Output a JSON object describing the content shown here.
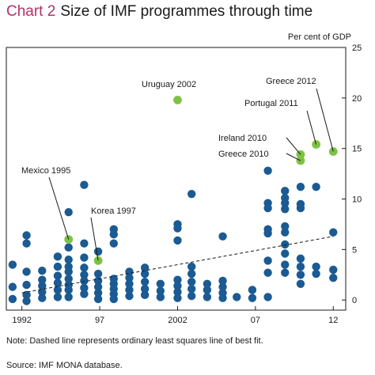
{
  "header": {
    "chart_number": "Chart 2",
    "title": "Size of IMF programmes through time"
  },
  "unit_label": "Per cent of GDP",
  "footnote": "Note:  Dashed line represents ordinary least squares line of best fit.",
  "source": "Source:  IMF MONA database.",
  "colors": {
    "point": "#1b5a92",
    "highlight": "#7ec244",
    "frame": "#1a1a1a",
    "fit_line": "#1a1a1a",
    "title_accent": "#b5306a"
  },
  "chart_data": {
    "type": "scatter",
    "xlim": [
      1991,
      2012.8
    ],
    "ylim": [
      -1,
      25
    ],
    "x_ticks": [
      {
        "value": 1992,
        "label": "1992"
      },
      {
        "value": 1997,
        "label": "97"
      },
      {
        "value": 2002,
        "label": "2002"
      },
      {
        "value": 2007,
        "label": "07"
      },
      {
        "value": 2012,
        "label": "12"
      }
    ],
    "y_ticks": [
      {
        "value": 0,
        "label": "0"
      },
      {
        "value": 5,
        "label": "5"
      },
      {
        "value": 10,
        "label": "10"
      },
      {
        "value": 15,
        "label": "15"
      },
      {
        "value": 20,
        "label": "20"
      },
      {
        "value": 25,
        "label": "25"
      }
    ],
    "grid": false,
    "fit_line": {
      "style": "dashed",
      "x": [
        1992,
        2012
      ],
      "y": [
        0.7,
        6.3
      ]
    },
    "highlighted": [
      {
        "label": "Mexico 1995",
        "x": 1995,
        "y": 6.0
      },
      {
        "label": "Korea 1997",
        "x": 1996.9,
        "y": 3.9
      },
      {
        "label": "Uruguay 2002",
        "x": 2002,
        "y": 19.8
      },
      {
        "label": "Ireland 2010",
        "x": 2009.9,
        "y": 14.4
      },
      {
        "label": "Greece 2010",
        "x": 2009.9,
        "y": 13.8
      },
      {
        "label": "Portugal 2011",
        "x": 2010.9,
        "y": 15.4
      },
      {
        "label": "Greece 2012",
        "x": 2012,
        "y": 14.7
      }
    ],
    "points": [
      {
        "x": 1991.4,
        "y": 0.1
      },
      {
        "x": 1991.4,
        "y": 1.3
      },
      {
        "x": 1991.4,
        "y": 3.5
      },
      {
        "x": 1992.3,
        "y": 6.4
      },
      {
        "x": 1992.3,
        "y": 5.6
      },
      {
        "x": 1992.3,
        "y": 2.8
      },
      {
        "x": 1992.3,
        "y": 1.5
      },
      {
        "x": 1992.3,
        "y": 0.5
      },
      {
        "x": 1992.3,
        "y": -0.1
      },
      {
        "x": 1993.3,
        "y": 0.2
      },
      {
        "x": 1993.3,
        "y": 0.8
      },
      {
        "x": 1993.3,
        "y": 1.4
      },
      {
        "x": 1993.3,
        "y": 2.0
      },
      {
        "x": 1993.3,
        "y": 2.9
      },
      {
        "x": 1994.3,
        "y": 4.3
      },
      {
        "x": 1994.3,
        "y": 3.3
      },
      {
        "x": 1994.3,
        "y": 2.4
      },
      {
        "x": 1994.3,
        "y": 1.7
      },
      {
        "x": 1994.3,
        "y": 1.0
      },
      {
        "x": 1994.3,
        "y": 0.3
      },
      {
        "x": 1995,
        "y": 8.7
      },
      {
        "x": 1995,
        "y": 5.2
      },
      {
        "x": 1995,
        "y": 4.0
      },
      {
        "x": 1995,
        "y": 3.3
      },
      {
        "x": 1995,
        "y": 2.8
      },
      {
        "x": 1995,
        "y": 2.1
      },
      {
        "x": 1995,
        "y": 1.5
      },
      {
        "x": 1995,
        "y": 1.0
      },
      {
        "x": 1995,
        "y": 0.3
      },
      {
        "x": 1996,
        "y": 11.4
      },
      {
        "x": 1996,
        "y": 5.6
      },
      {
        "x": 1996,
        "y": 4.2
      },
      {
        "x": 1996,
        "y": 3.2
      },
      {
        "x": 1996,
        "y": 2.5
      },
      {
        "x": 1996,
        "y": 1.9
      },
      {
        "x": 1996,
        "y": 1.2
      },
      {
        "x": 1996,
        "y": 0.6
      },
      {
        "x": 1996.9,
        "y": 4.8
      },
      {
        "x": 1996.9,
        "y": 2.6
      },
      {
        "x": 1996.9,
        "y": 1.9
      },
      {
        "x": 1996.9,
        "y": 1.3
      },
      {
        "x": 1996.9,
        "y": 0.7
      },
      {
        "x": 1996.9,
        "y": 0.1
      },
      {
        "x": 1997.9,
        "y": 7.0
      },
      {
        "x": 1997.9,
        "y": 6.5
      },
      {
        "x": 1997.9,
        "y": 5.6
      },
      {
        "x": 1997.9,
        "y": 2.1
      },
      {
        "x": 1997.9,
        "y": 1.6
      },
      {
        "x": 1997.9,
        "y": 1.1
      },
      {
        "x": 1997.9,
        "y": 0.6
      },
      {
        "x": 1997.9,
        "y": 0.1
      },
      {
        "x": 1998.9,
        "y": 2.8
      },
      {
        "x": 1998.9,
        "y": 2.2
      },
      {
        "x": 1998.9,
        "y": 1.6
      },
      {
        "x": 1998.9,
        "y": 1.0
      },
      {
        "x": 1998.9,
        "y": 0.4
      },
      {
        "x": 1999.9,
        "y": 3.2
      },
      {
        "x": 1999.9,
        "y": 2.6
      },
      {
        "x": 1999.9,
        "y": 1.8
      },
      {
        "x": 1999.9,
        "y": 1.1
      },
      {
        "x": 1999.9,
        "y": 0.5
      },
      {
        "x": 2000.9,
        "y": 1.6
      },
      {
        "x": 2000.9,
        "y": 0.9
      },
      {
        "x": 2000.9,
        "y": 0.3
      },
      {
        "x": 2002,
        "y": 7.5
      },
      {
        "x": 2002,
        "y": 7.1
      },
      {
        "x": 2002,
        "y": 5.9
      },
      {
        "x": 2002,
        "y": 2.0
      },
      {
        "x": 2002,
        "y": 1.4
      },
      {
        "x": 2002,
        "y": 0.8
      },
      {
        "x": 2002,
        "y": 0.2
      },
      {
        "x": 2002.9,
        "y": 10.5
      },
      {
        "x": 2002.9,
        "y": 3.3
      },
      {
        "x": 2002.9,
        "y": 2.6
      },
      {
        "x": 2002.9,
        "y": 1.8
      },
      {
        "x": 2002.9,
        "y": 1.1
      },
      {
        "x": 2002.9,
        "y": 0.4
      },
      {
        "x": 2003.9,
        "y": 1.6
      },
      {
        "x": 2003.9,
        "y": 1.0
      },
      {
        "x": 2003.9,
        "y": 0.3
      },
      {
        "x": 2004.9,
        "y": 6.3
      },
      {
        "x": 2004.9,
        "y": 1.9
      },
      {
        "x": 2004.9,
        "y": 1.3
      },
      {
        "x": 2004.9,
        "y": 0.7
      },
      {
        "x": 2004.9,
        "y": 0.2
      },
      {
        "x": 2005.8,
        "y": 0.3
      },
      {
        "x": 2006.8,
        "y": 1.0
      },
      {
        "x": 2006.8,
        "y": 0.2
      },
      {
        "x": 2007.8,
        "y": 12.8
      },
      {
        "x": 2007.8,
        "y": 9.6
      },
      {
        "x": 2007.8,
        "y": 9.1
      },
      {
        "x": 2007.8,
        "y": 7.0
      },
      {
        "x": 2007.8,
        "y": 6.6
      },
      {
        "x": 2007.8,
        "y": 3.9
      },
      {
        "x": 2007.8,
        "y": 2.7
      },
      {
        "x": 2007.8,
        "y": 0.3
      },
      {
        "x": 2008.9,
        "y": 10.8
      },
      {
        "x": 2008.9,
        "y": 10.1
      },
      {
        "x": 2008.9,
        "y": 9.6
      },
      {
        "x": 2008.9,
        "y": 9.0
      },
      {
        "x": 2008.9,
        "y": 7.3
      },
      {
        "x": 2008.9,
        "y": 6.7
      },
      {
        "x": 2008.9,
        "y": 5.5
      },
      {
        "x": 2008.9,
        "y": 4.6
      },
      {
        "x": 2008.9,
        "y": 3.5
      },
      {
        "x": 2008.9,
        "y": 2.7
      },
      {
        "x": 2009.9,
        "y": 11.2
      },
      {
        "x": 2009.9,
        "y": 9.5
      },
      {
        "x": 2009.9,
        "y": 9.1
      },
      {
        "x": 2009.9,
        "y": 4.1
      },
      {
        "x": 2009.9,
        "y": 3.3
      },
      {
        "x": 2009.9,
        "y": 2.5
      },
      {
        "x": 2009.9,
        "y": 1.6
      },
      {
        "x": 2010.9,
        "y": 11.2
      },
      {
        "x": 2010.9,
        "y": 3.3
      },
      {
        "x": 2010.9,
        "y": 2.6
      },
      {
        "x": 2012,
        "y": 6.7
      },
      {
        "x": 2012,
        "y": 3.0
      },
      {
        "x": 2012,
        "y": 2.2
      }
    ]
  }
}
